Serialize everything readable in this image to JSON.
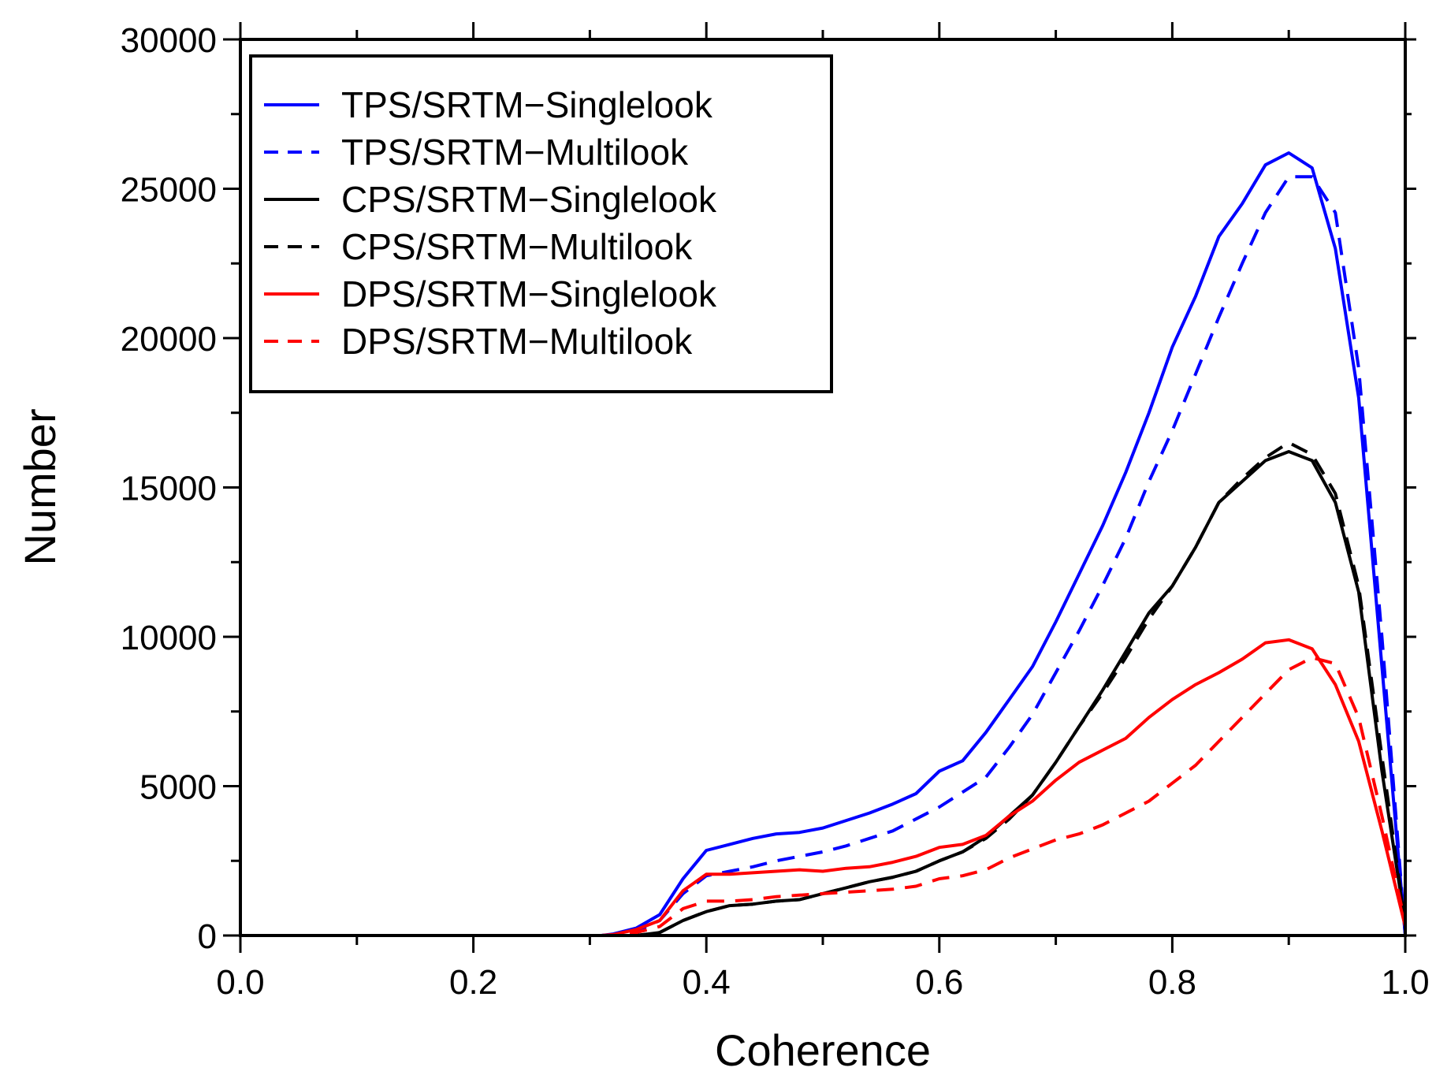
{
  "chart_data": {
    "type": "line",
    "title": "",
    "xlabel": "Coherence",
    "ylabel": "Number",
    "xlim": [
      0.0,
      1.0
    ],
    "ylim": [
      0,
      30000
    ],
    "x_ticks": [
      0.0,
      0.2,
      0.4,
      0.6,
      0.8,
      1.0
    ],
    "x_tick_labels": [
      "0.0",
      "0.2",
      "0.4",
      "0.6",
      "0.8",
      "1.0"
    ],
    "y_ticks": [
      0,
      5000,
      10000,
      15000,
      20000,
      25000,
      30000
    ],
    "y_tick_labels": [
      "0",
      "5000",
      "10000",
      "15000",
      "20000",
      "25000",
      "30000"
    ],
    "grid": false,
    "legend_position": "top-left",
    "series": [
      {
        "name": "TPS/SRTM−Singlelook",
        "color": "#0000ff",
        "style": "solid",
        "x": [
          0.31,
          0.32,
          0.34,
          0.36,
          0.38,
          0.4,
          0.42,
          0.44,
          0.46,
          0.48,
          0.5,
          0.52,
          0.54,
          0.56,
          0.58,
          0.6,
          0.62,
          0.64,
          0.66,
          0.68,
          0.7,
          0.72,
          0.74,
          0.76,
          0.78,
          0.8,
          0.82,
          0.84,
          0.86,
          0.88,
          0.9,
          0.92,
          0.94,
          0.96,
          0.98,
          1.0
        ],
        "y": [
          0,
          50,
          250,
          700,
          1900,
          2850,
          3050,
          3250,
          3400,
          3450,
          3600,
          3850,
          4100,
          4400,
          4750,
          5500,
          5850,
          6800,
          7900,
          9000,
          10500,
          12100,
          13700,
          15500,
          17500,
          19700,
          21400,
          23400,
          24500,
          25800,
          26200,
          25700,
          23000,
          18000,
          9000,
          0
        ]
      },
      {
        "name": "TPS/SRTM−Multilook",
        "color": "#0000ff",
        "style": "dashed",
        "x": [
          0.31,
          0.32,
          0.34,
          0.36,
          0.38,
          0.4,
          0.42,
          0.44,
          0.46,
          0.48,
          0.5,
          0.52,
          0.54,
          0.56,
          0.58,
          0.6,
          0.62,
          0.64,
          0.66,
          0.68,
          0.7,
          0.72,
          0.74,
          0.76,
          0.78,
          0.8,
          0.82,
          0.84,
          0.86,
          0.88,
          0.9,
          0.92,
          0.94,
          0.96,
          0.98,
          1.0
        ],
        "y": [
          0,
          30,
          150,
          500,
          1400,
          2000,
          2150,
          2300,
          2500,
          2650,
          2800,
          3000,
          3250,
          3500,
          3900,
          4300,
          4800,
          5300,
          6300,
          7400,
          8800,
          10200,
          11700,
          13300,
          15200,
          16900,
          18800,
          20700,
          22500,
          24200,
          25400,
          25400,
          24200,
          19000,
          10000,
          0
        ]
      },
      {
        "name": "CPS/SRTM−Singlelook",
        "color": "#000000",
        "style": "solid",
        "x": [
          0.31,
          0.32,
          0.34,
          0.36,
          0.38,
          0.4,
          0.42,
          0.44,
          0.46,
          0.48,
          0.5,
          0.52,
          0.54,
          0.56,
          0.58,
          0.6,
          0.62,
          0.64,
          0.66,
          0.68,
          0.7,
          0.72,
          0.74,
          0.76,
          0.78,
          0.8,
          0.82,
          0.84,
          0.86,
          0.88,
          0.9,
          0.92,
          0.94,
          0.96,
          0.98,
          1.0
        ],
        "y": [
          0,
          0,
          0,
          100,
          500,
          800,
          1000,
          1050,
          1150,
          1200,
          1400,
          1600,
          1800,
          1950,
          2150,
          2500,
          2800,
          3300,
          4000,
          4700,
          5800,
          7000,
          8200,
          9500,
          10800,
          11700,
          13000,
          14500,
          15200,
          15900,
          16200,
          15900,
          14500,
          11500,
          5500,
          400
        ]
      },
      {
        "name": "CPS/SRTM−Multilook",
        "color": "#000000",
        "style": "dashed",
        "x": [
          0.31,
          0.32,
          0.34,
          0.36,
          0.38,
          0.4,
          0.42,
          0.44,
          0.46,
          0.48,
          0.5,
          0.52,
          0.54,
          0.56,
          0.58,
          0.6,
          0.62,
          0.64,
          0.66,
          0.68,
          0.7,
          0.72,
          0.74,
          0.76,
          0.78,
          0.8,
          0.82,
          0.84,
          0.86,
          0.88,
          0.9,
          0.92,
          0.94,
          0.96,
          0.98,
          1.0
        ],
        "y": [
          0,
          0,
          0,
          100,
          500,
          800,
          1000,
          1050,
          1150,
          1200,
          1400,
          1600,
          1800,
          1950,
          2150,
          2500,
          2800,
          3250,
          3900,
          4700,
          5800,
          7000,
          8100,
          9300,
          10600,
          11700,
          13000,
          14500,
          15300,
          16000,
          16500,
          16100,
          14800,
          11700,
          6000,
          400
        ]
      },
      {
        "name": "DPS/SRTM−Singlelook",
        "color": "#ff0000",
        "style": "solid",
        "x": [
          0.31,
          0.32,
          0.34,
          0.36,
          0.38,
          0.4,
          0.42,
          0.44,
          0.46,
          0.48,
          0.5,
          0.52,
          0.54,
          0.56,
          0.58,
          0.6,
          0.62,
          0.64,
          0.66,
          0.68,
          0.7,
          0.72,
          0.74,
          0.76,
          0.78,
          0.8,
          0.82,
          0.84,
          0.86,
          0.88,
          0.9,
          0.92,
          0.94,
          0.96,
          0.98,
          1.0
        ],
        "y": [
          0,
          30,
          200,
          500,
          1500,
          2050,
          2050,
          2100,
          2150,
          2200,
          2150,
          2250,
          2300,
          2450,
          2650,
          2950,
          3050,
          3350,
          4000,
          4500,
          5200,
          5800,
          6200,
          6600,
          7300,
          7900,
          8400,
          8800,
          9250,
          9800,
          9900,
          9600,
          8400,
          6500,
          3500,
          300
        ]
      },
      {
        "name": "DPS/SRTM−Multilook",
        "color": "#ff0000",
        "style": "dashed",
        "x": [
          0.31,
          0.32,
          0.34,
          0.36,
          0.38,
          0.4,
          0.42,
          0.44,
          0.46,
          0.48,
          0.5,
          0.52,
          0.54,
          0.56,
          0.58,
          0.6,
          0.62,
          0.64,
          0.66,
          0.68,
          0.7,
          0.72,
          0.74,
          0.76,
          0.78,
          0.8,
          0.82,
          0.84,
          0.86,
          0.88,
          0.9,
          0.92,
          0.94,
          0.96,
          0.98,
          1.0
        ],
        "y": [
          0,
          20,
          100,
          300,
          900,
          1150,
          1150,
          1200,
          1300,
          1350,
          1400,
          1450,
          1500,
          1550,
          1650,
          1900,
          2000,
          2200,
          2600,
          2900,
          3200,
          3400,
          3700,
          4100,
          4500,
          5100,
          5700,
          6500,
          7300,
          8100,
          8900,
          9300,
          9100,
          7300,
          4000,
          400
        ]
      }
    ]
  }
}
